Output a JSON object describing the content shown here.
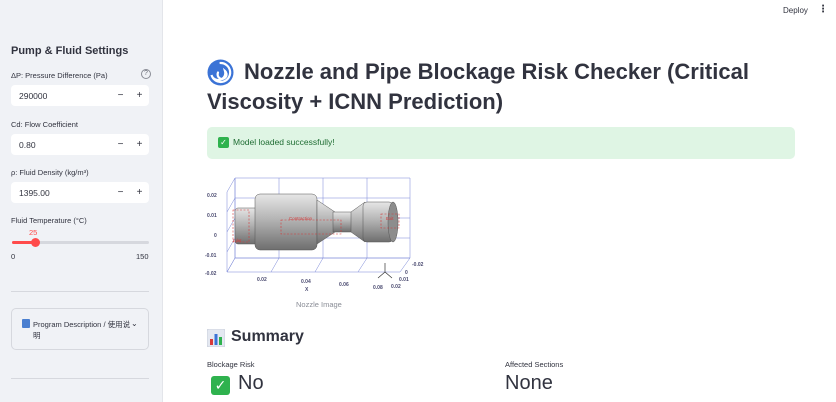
{
  "topbar": {
    "deploy_label": "Deploy",
    "menu_icon": "kebab-menu-icon"
  },
  "sidebar": {
    "title": "Pump & Fluid Settings",
    "pressure": {
      "label": "ΔP: Pressure Difference (Pa)",
      "value": "290000"
    },
    "cd": {
      "label": "Cd: Flow Coefficient",
      "value": "0.80"
    },
    "density": {
      "label": "ρ: Fluid Density (kg/m³)",
      "value": "1395.00"
    },
    "temperature": {
      "label": "Fluid Temperature (°C)",
      "value": "25",
      "min": "0",
      "max": "150",
      "fraction": 0.1667
    },
    "stepper": {
      "minus": "−",
      "plus": "+"
    },
    "expander": {
      "label": "Program Description / 使用说明"
    }
  },
  "main": {
    "title_line1": "Nozzle and Pipe Blockage Risk Checker (Critical",
    "title_line2": "Viscosity + ICNN Prediction)",
    "success_message": "Model loaded successfully!",
    "image_caption": "Nozzle Image",
    "figure": {
      "y_ticks": [
        "0.02",
        "0.01",
        "0",
        "-0.01",
        "-0.02"
      ],
      "x_ticks": [
        "0.02",
        "0.04",
        "0.06",
        "0.08"
      ],
      "x_label": "X",
      "z_ticks": [
        "-0.02",
        "0",
        "0.01",
        "0.02"
      ],
      "labels": {
        "contraction": "Contraction",
        "inlet": "Inlet",
        "exit": "Exit"
      }
    },
    "summary": {
      "title": "Summary",
      "blockage_label": "Blockage Risk",
      "blockage_value": "No",
      "affected_label": "Affected Sections",
      "affected_value": "None"
    }
  },
  "colors": {
    "accent": "#ff4b4b",
    "success_bg": "#dff5e4",
    "success_icon": "#2fb24e",
    "sidebar_bg": "#f0f2f6"
  }
}
